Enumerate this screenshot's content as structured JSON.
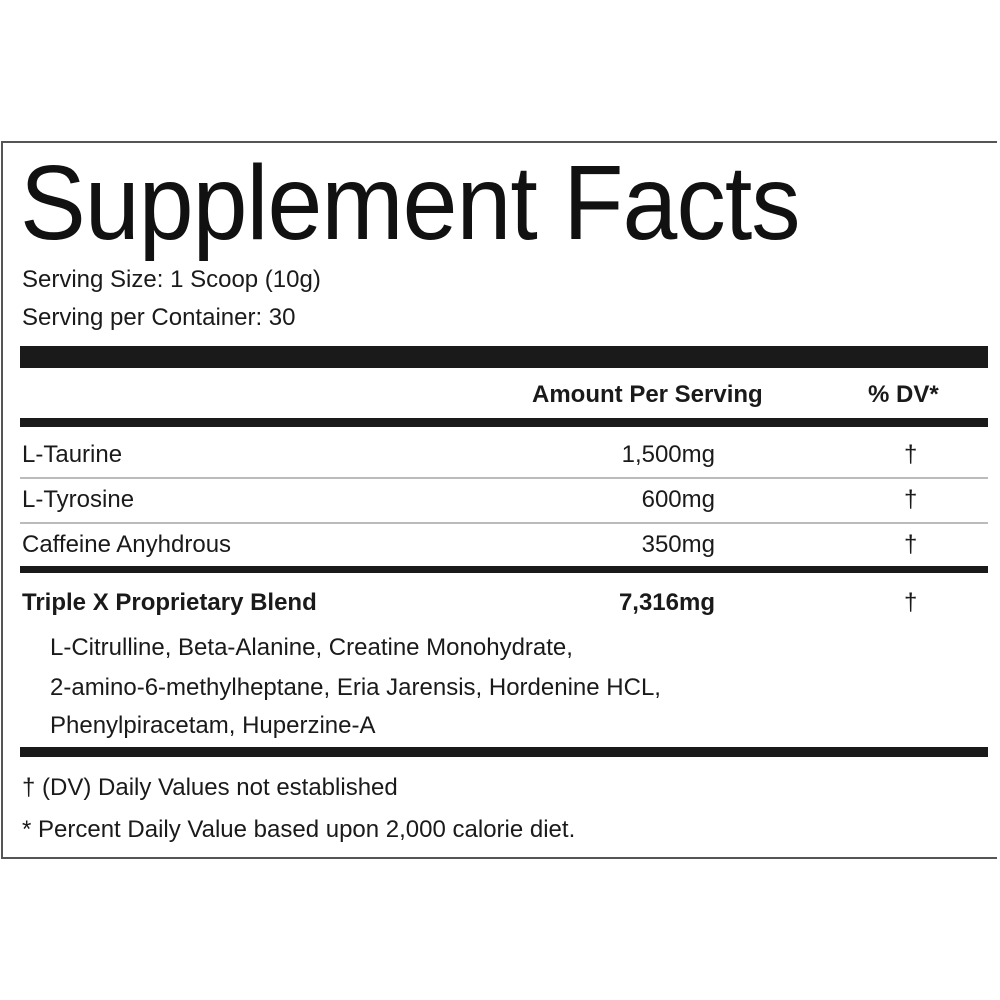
{
  "title": "Supplement Facts",
  "serving_size": "Serving Size: 1 Scoop (10g)",
  "servings_per_container": "Serving per Container: 30",
  "header": {
    "amount": "Amount Per Serving",
    "dv": "% DV*"
  },
  "rows": [
    {
      "name": "L-Taurine",
      "amount": "1,500mg",
      "dv": "†"
    },
    {
      "name": "L-Tyrosine",
      "amount": "600mg",
      "dv": "†"
    },
    {
      "name": "Caffeine Anyhdrous",
      "amount": "350mg",
      "dv": "†"
    }
  ],
  "blend": {
    "name": "Triple X Proprietary Blend",
    "amount": "7,316mg",
    "dv": "†",
    "ingredients": [
      "L-Citrulline, Beta-Alanine, Creatine Monohydrate,",
      "2-amino-6-methylheptane, Eria Jarensis, Hordenine HCL,",
      "Phenylpiracetam, Huperzine-A"
    ]
  },
  "footnotes": [
    "† (DV) Daily Values not established",
    "* Percent Daily Value based upon 2,000 calorie diet."
  ]
}
